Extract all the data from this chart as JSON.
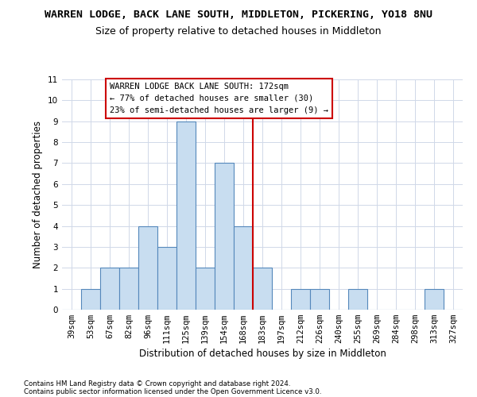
{
  "title": "WARREN LODGE, BACK LANE SOUTH, MIDDLETON, PICKERING, YO18 8NU",
  "subtitle": "Size of property relative to detached houses in Middleton",
  "xlabel": "Distribution of detached houses by size in Middleton",
  "ylabel": "Number of detached properties",
  "categories": [
    "39sqm",
    "53sqm",
    "67sqm",
    "82sqm",
    "96sqm",
    "111sqm",
    "125sqm",
    "139sqm",
    "154sqm",
    "168sqm",
    "183sqm",
    "197sqm",
    "212sqm",
    "226sqm",
    "240sqm",
    "255sqm",
    "269sqm",
    "284sqm",
    "298sqm",
    "313sqm",
    "327sqm"
  ],
  "values": [
    0,
    1,
    2,
    2,
    4,
    3,
    9,
    2,
    7,
    4,
    2,
    0,
    1,
    1,
    0,
    1,
    0,
    0,
    0,
    1,
    0
  ],
  "bar_color": "#c8ddf0",
  "bar_edge_color": "#5588bb",
  "ylim_max": 11,
  "yticks": [
    0,
    1,
    2,
    3,
    4,
    5,
    6,
    7,
    8,
    9,
    10,
    11
  ],
  "vline_position": 9.5,
  "vline_color": "#cc0000",
  "annotation_title": "WARREN LODGE BACK LANE SOUTH: 172sqm",
  "annotation_line1": "← 77% of detached houses are smaller (30)",
  "annotation_line2": "23% of semi-detached houses are larger (9) →",
  "footnote1": "Contains HM Land Registry data © Crown copyright and database right 2024.",
  "footnote2": "Contains public sector information licensed under the Open Government Licence v3.0.",
  "bg_color": "#ffffff",
  "plot_bg_color": "#ffffff",
  "grid_color": "#d0d8e8",
  "title_fontsize": 9.5,
  "subtitle_fontsize": 9.0,
  "tick_fontsize": 7.5,
  "ylabel_fontsize": 8.5,
  "xlabel_fontsize": 8.5
}
